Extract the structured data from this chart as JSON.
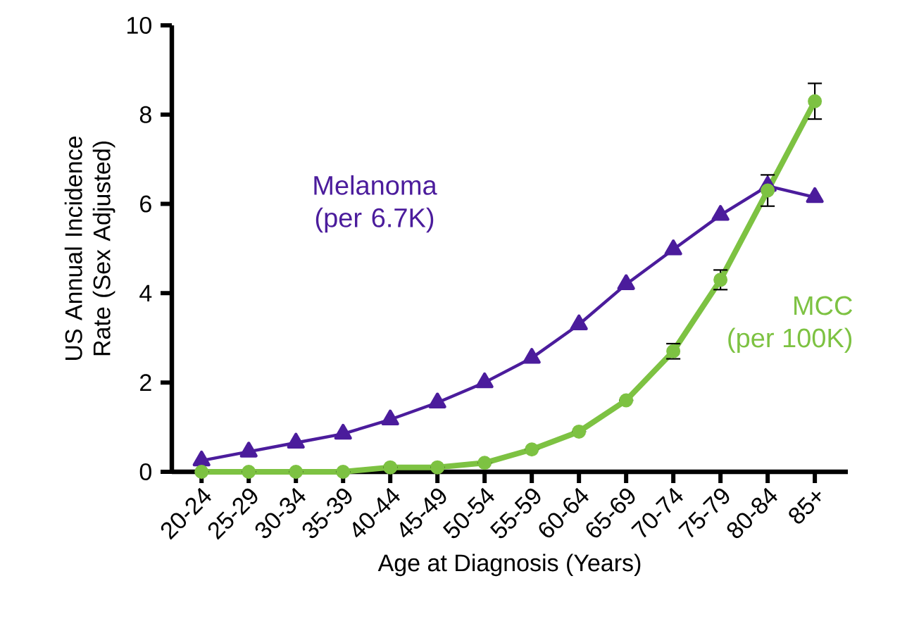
{
  "chart_data": {
    "type": "line",
    "xlabel": "Age at Diagnosis (Years)",
    "ylabel": "US Annual Incidence Rate (Sex Adjusted)",
    "categories": [
      "20-24",
      "25-29",
      "30-34",
      "35-39",
      "40-44",
      "45-49",
      "50-54",
      "55-59",
      "60-64",
      "65-69",
      "70-74",
      "75-79",
      "80-84",
      "85+"
    ],
    "ylim": [
      0,
      10
    ],
    "yticks": [
      0,
      2,
      4,
      6,
      8,
      10
    ],
    "grid": false,
    "legend": false,
    "series": [
      {
        "name": "Melanoma (per 6.7K)",
        "color": "#4b1c9c",
        "marker": "triangle",
        "values": [
          0.25,
          0.45,
          0.65,
          0.85,
          1.17,
          1.55,
          2.0,
          2.55,
          3.3,
          4.2,
          4.98,
          5.75,
          6.4,
          6.15
        ]
      },
      {
        "name": "MCC (per 100K)",
        "color": "#7dc242",
        "marker": "circle",
        "values": [
          0,
          0,
          0,
          0,
          0.1,
          0.1,
          0.2,
          0.5,
          0.9,
          1.6,
          2.7,
          4.3,
          6.3,
          8.3
        ],
        "errors": [
          null,
          null,
          null,
          null,
          null,
          null,
          null,
          null,
          null,
          null,
          0.17,
          0.22,
          0.35,
          0.4
        ]
      }
    ]
  }
}
